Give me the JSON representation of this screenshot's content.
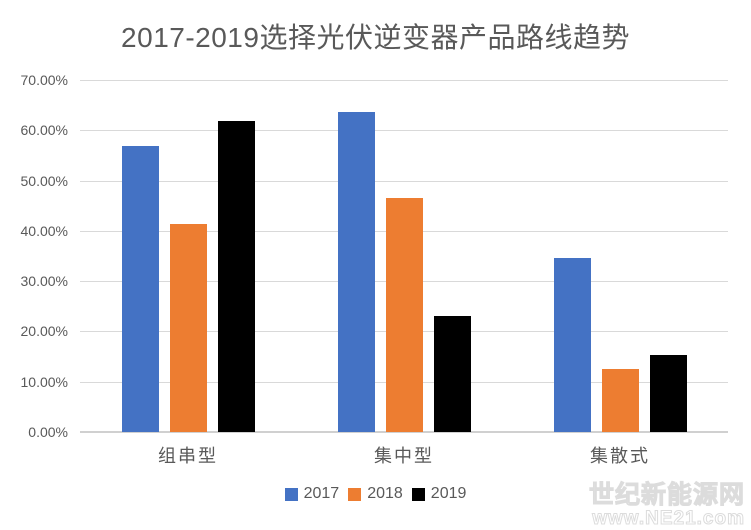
{
  "chart_data": {
    "type": "bar",
    "title": "2017-2019选择光伏逆变器产品路线趋势",
    "categories": [
      "组串型",
      "集中型",
      "集散式"
    ],
    "series": [
      {
        "name": "2017",
        "color": "#4472C4",
        "values": [
          56.9,
          63.6,
          34.6
        ]
      },
      {
        "name": "2018",
        "color": "#ED7D31",
        "values": [
          41.4,
          46.5,
          12.5
        ]
      },
      {
        "name": "2019",
        "color": "#000000",
        "values": [
          61.8,
          23.0,
          15.3
        ]
      }
    ],
    "xlabel": "",
    "ylabel": "",
    "ylim": [
      0,
      70
    ],
    "y_tick_step": 10,
    "y_tick_labels": [
      "0.00%",
      "10.00%",
      "20.00%",
      "30.00%",
      "40.00%",
      "50.00%",
      "60.00%",
      "70.00%"
    ],
    "grid": true,
    "legend_position": "bottom"
  },
  "watermark": {
    "line1": "世纪新能源网",
    "line2": "www.NE21.com"
  },
  "colors": {
    "background": "#FFFFFF",
    "gridline": "#D9D9D9",
    "text": "#595959",
    "series_2017": "#4472C4",
    "series_2018": "#ED7D31",
    "series_2019": "#000000"
  }
}
